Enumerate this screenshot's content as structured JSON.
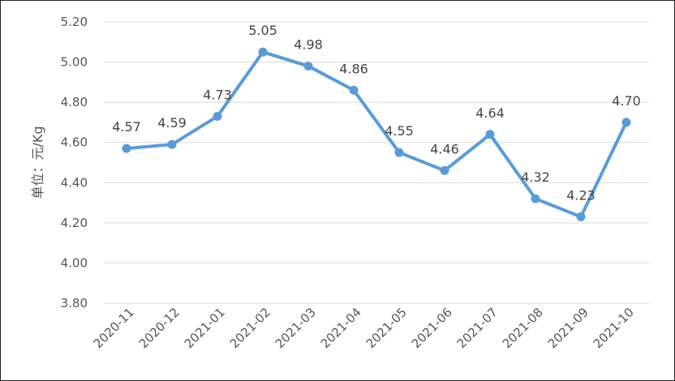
{
  "chart_data": {
    "type": "line",
    "categories": [
      "2020-11",
      "2020-12",
      "2021-01",
      "2021-02",
      "2021-03",
      "2021-04",
      "2021-05",
      "2021-06",
      "2021-07",
      "2021-08",
      "2021-09",
      "2021-10"
    ],
    "series": [
      {
        "values": [
          4.57,
          4.59,
          4.73,
          5.05,
          4.98,
          4.86,
          4.55,
          4.46,
          4.64,
          4.32,
          4.23,
          4.7
        ]
      }
    ],
    "data_labels": [
      "4.57",
      "4.59",
      "4.73",
      "5.05",
      "4.98",
      "4.86",
      "4.55",
      "4.46",
      "4.64",
      "4.32",
      "4.23",
      "4.70"
    ],
    "ylabel": "单位：元/Kg",
    "ylim": [
      3.8,
      5.2
    ],
    "yticks": [
      "3.80",
      "4.00",
      "4.20",
      "4.40",
      "4.60",
      "4.80",
      "5.00",
      "5.20"
    ],
    "grid": true,
    "line_color": "#5b9bd5"
  }
}
